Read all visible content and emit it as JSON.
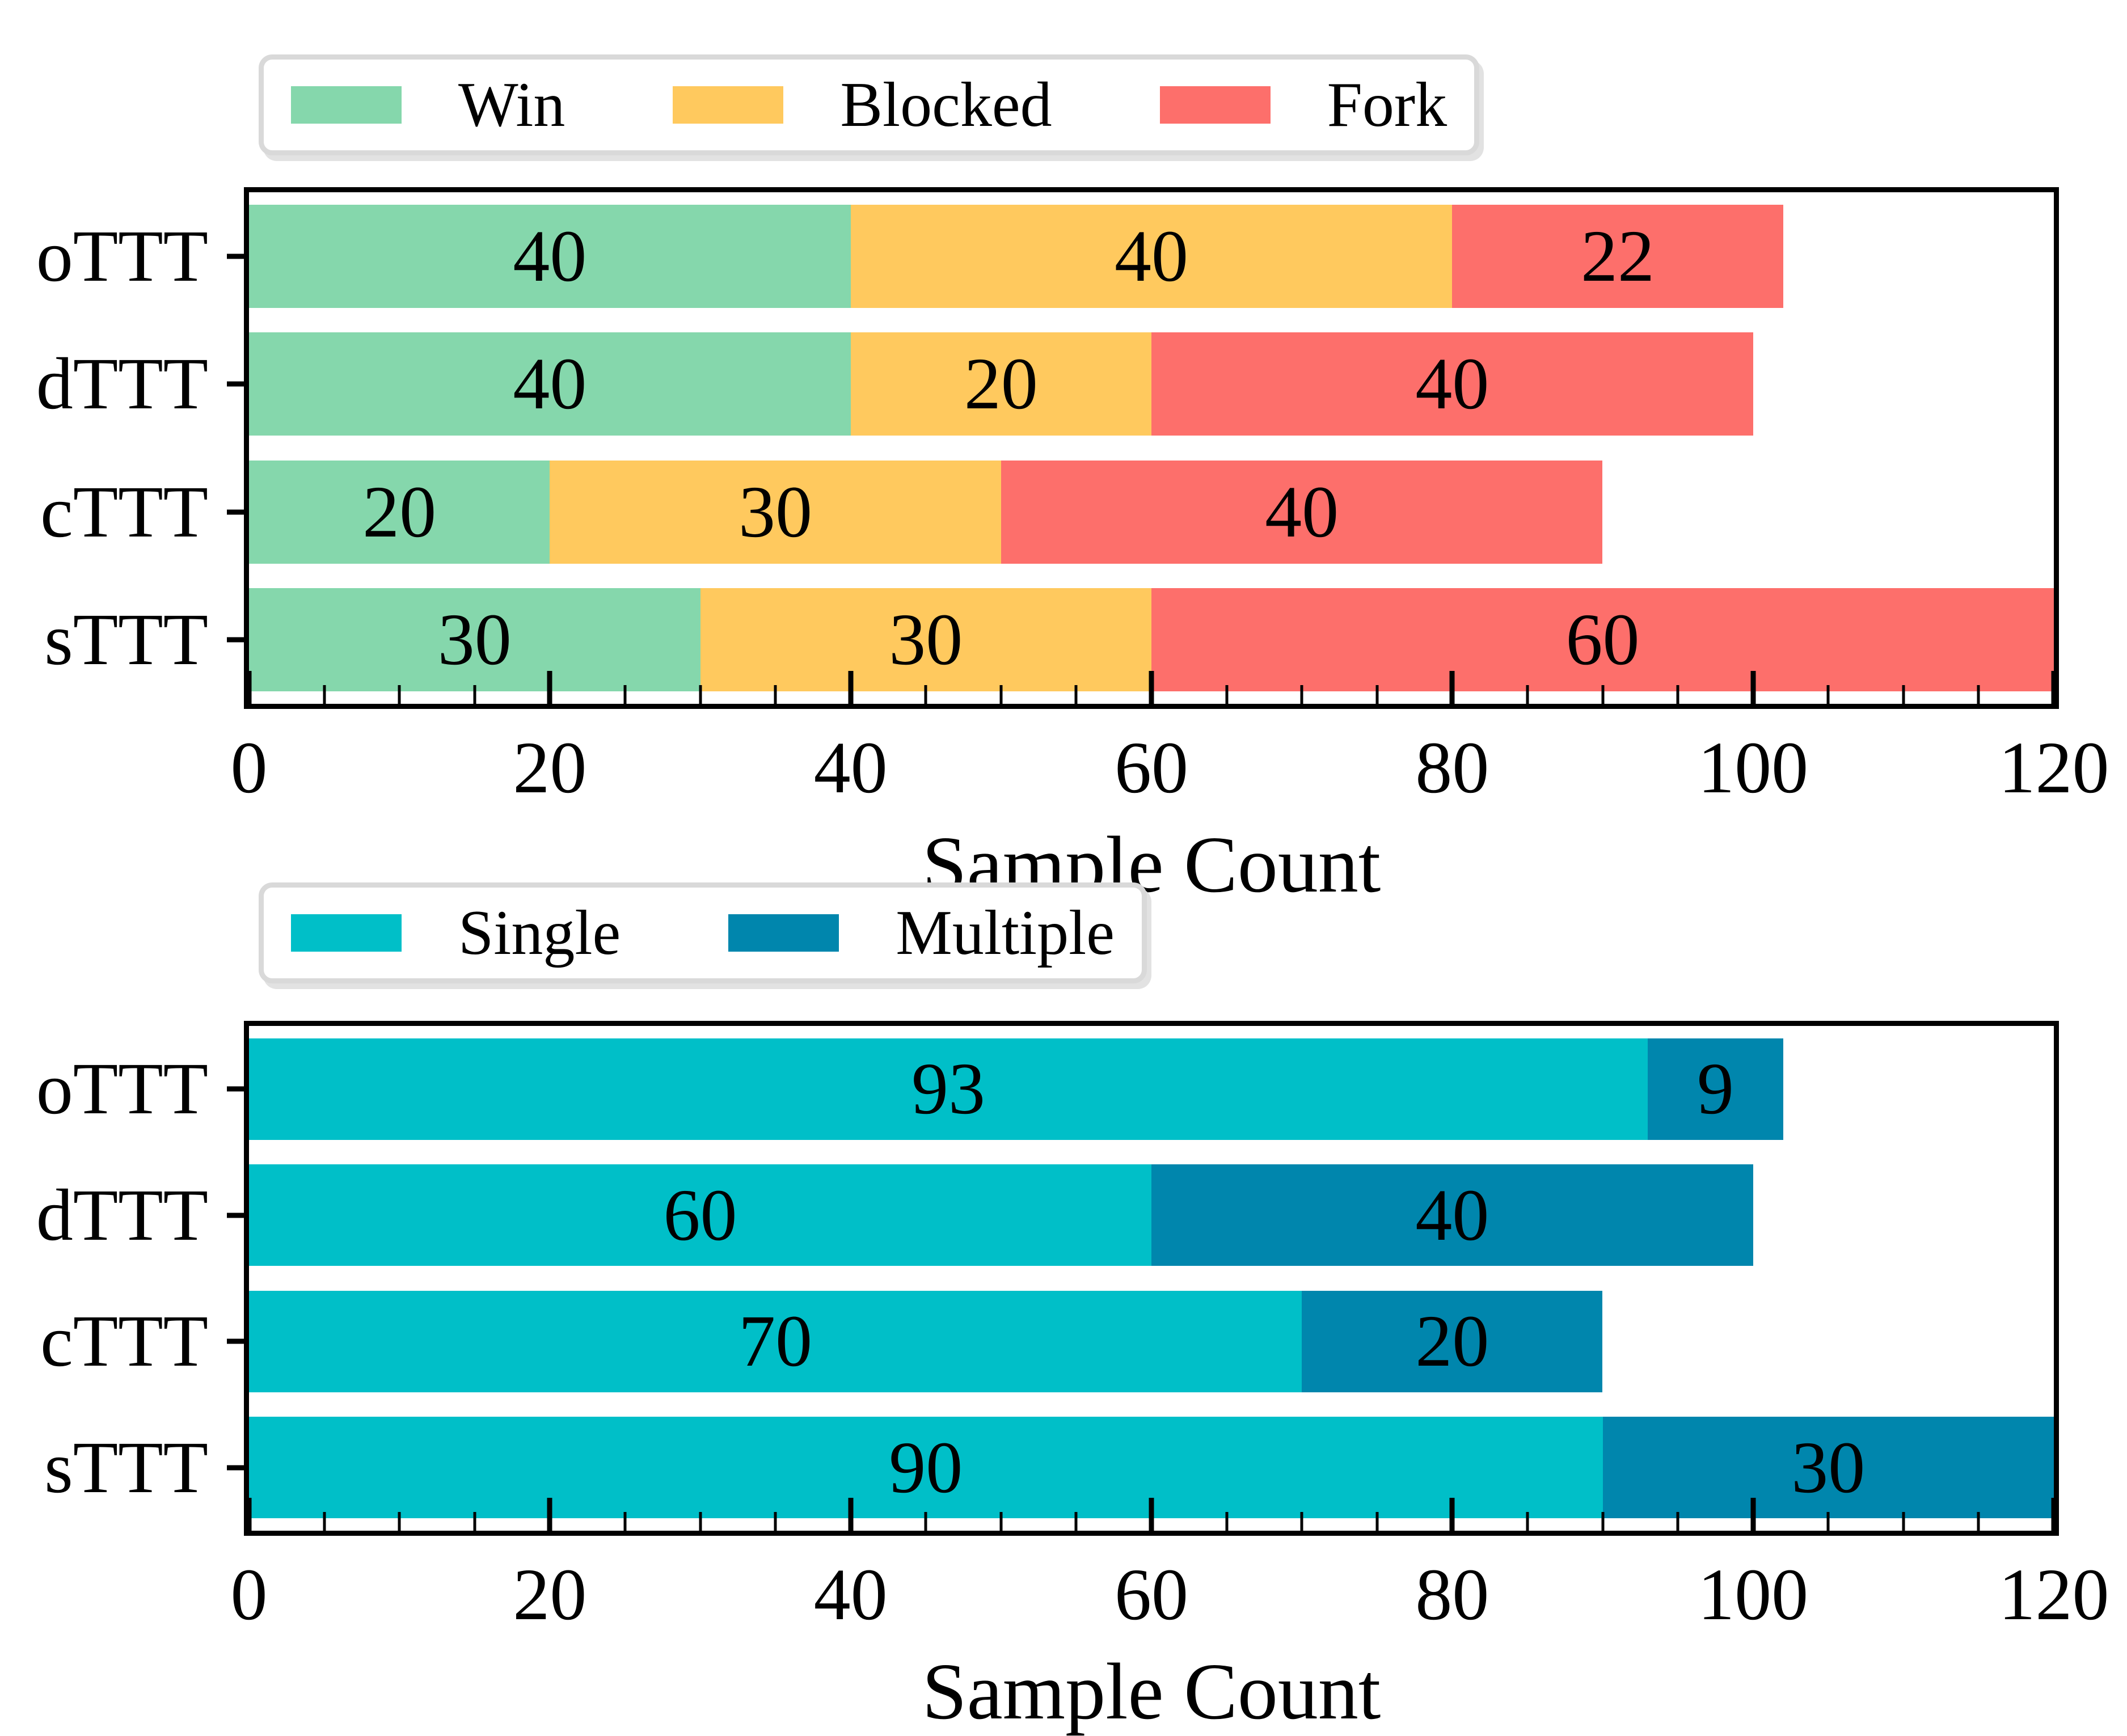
{
  "figure": {
    "background": "#ffffff",
    "text_color": "#000000",
    "spine_color": "#000000"
  },
  "chart_data": [
    {
      "type": "bar",
      "orientation": "horizontal",
      "stacked": true,
      "categories": [
        "oTTT",
        "dTTT",
        "cTTT",
        "sTTT"
      ],
      "series": [
        {
          "name": "Win",
          "color": "#85d7ac",
          "values": [
            40,
            40,
            20,
            30
          ]
        },
        {
          "name": "Blocked",
          "color": "#ffc95e",
          "values": [
            40,
            20,
            30,
            30
          ]
        },
        {
          "name": "Fork",
          "color": "#fd6f6b",
          "values": [
            22,
            40,
            40,
            60
          ]
        }
      ],
      "totals": [
        102,
        100,
        90,
        120
      ],
      "bar_value_labels": true,
      "xlabel": "Sample Count",
      "ylabel": "",
      "xlim": [
        0,
        120
      ],
      "xticks": [
        0,
        20,
        40,
        60,
        80,
        100,
        120
      ],
      "xtick_labels": [
        "0",
        "20",
        "40",
        "60",
        "80",
        "100",
        "120"
      ],
      "minor_tick_step": 5,
      "grid": false,
      "legend": {
        "position": "upper-left-above",
        "entries": [
          "Win",
          "Blocked",
          "Fork"
        ]
      }
    },
    {
      "type": "bar",
      "orientation": "horizontal",
      "stacked": true,
      "categories": [
        "oTTT",
        "dTTT",
        "cTTT",
        "sTTT"
      ],
      "series": [
        {
          "name": "Single",
          "color": "#00bfc8",
          "values": [
            93,
            60,
            70,
            90
          ]
        },
        {
          "name": "Multiple",
          "color": "#0086ad",
          "values": [
            9,
            40,
            20,
            30
          ]
        }
      ],
      "totals": [
        102,
        100,
        90,
        120
      ],
      "bar_value_labels": true,
      "xlabel": "Sample Count",
      "ylabel": "",
      "xlim": [
        0,
        120
      ],
      "xticks": [
        0,
        20,
        40,
        60,
        80,
        100,
        120
      ],
      "xtick_labels": [
        "0",
        "20",
        "40",
        "60",
        "80",
        "100",
        "120"
      ],
      "minor_tick_step": 5,
      "grid": false,
      "legend": {
        "position": "upper-left-above",
        "entries": [
          "Single",
          "Multiple"
        ]
      }
    }
  ]
}
